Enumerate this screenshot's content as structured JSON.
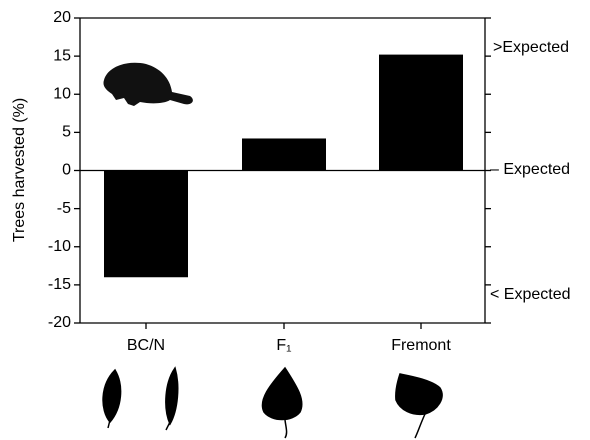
{
  "chart_data": {
    "type": "bar",
    "y_label": "Trees harvested (%)",
    "categories": [
      "BC/N",
      "F₁",
      "Fremont"
    ],
    "values": [
      -14,
      4.2,
      15.2
    ],
    "color": "#000000",
    "ylim": [
      -20,
      20
    ],
    "yticks": [
      -20,
      -15,
      -10,
      -5,
      0,
      5,
      10,
      15,
      20
    ],
    "annotations": [
      ">Expected",
      "– Expected",
      "< Expected"
    ]
  }
}
